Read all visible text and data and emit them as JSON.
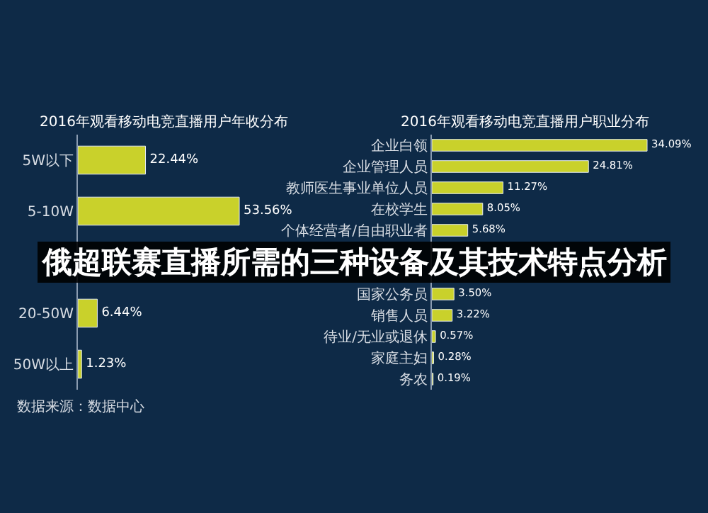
{
  "chart_data": [
    {
      "type": "bar",
      "orientation": "horizontal",
      "title": "2016年观看移动电竞直播用户年收分布",
      "categories": [
        "5W以下",
        "5-10W",
        null,
        "20-50W",
        "50W以上"
      ],
      "values": [
        22.44,
        53.56,
        null,
        6.44,
        1.23
      ],
      "value_labels": [
        "22.44%",
        "53.56%",
        null,
        "6.44%",
        "1.23%"
      ],
      "color": "#c9d12b",
      "tick_labels": "y",
      "grid": false,
      "annotations": [
        "俄超联赛直播所需的三种设备及其技术特点分析",
        "数据来源：数据中心"
      ]
    },
    {
      "type": "bar",
      "orientation": "horizontal",
      "title": "2016年观看移动电竞直播用户职业分布",
      "categories": [
        "企业白领",
        "企业管理人员",
        "教师医生事业单位人员",
        "在校学生",
        "个体经营者/自由职业者",
        null,
        null,
        "国家公务员",
        "销售人员",
        "待业/无业或退休",
        "家庭主妇",
        "务农"
      ],
      "values": [
        34.09,
        24.81,
        11.27,
        8.05,
        5.68,
        null,
        null,
        3.5,
        3.22,
        0.57,
        0.28,
        0.19
      ],
      "value_labels": [
        "34.09%",
        "24.81%",
        "11.27%",
        "8.05%",
        "5.68%",
        null,
        null,
        "3.50%",
        "3.22%",
        "0.57%",
        "0.28%",
        "0.19%"
      ],
      "color": "#c9d12b",
      "tick_labels": "y",
      "grid": false
    }
  ]
}
